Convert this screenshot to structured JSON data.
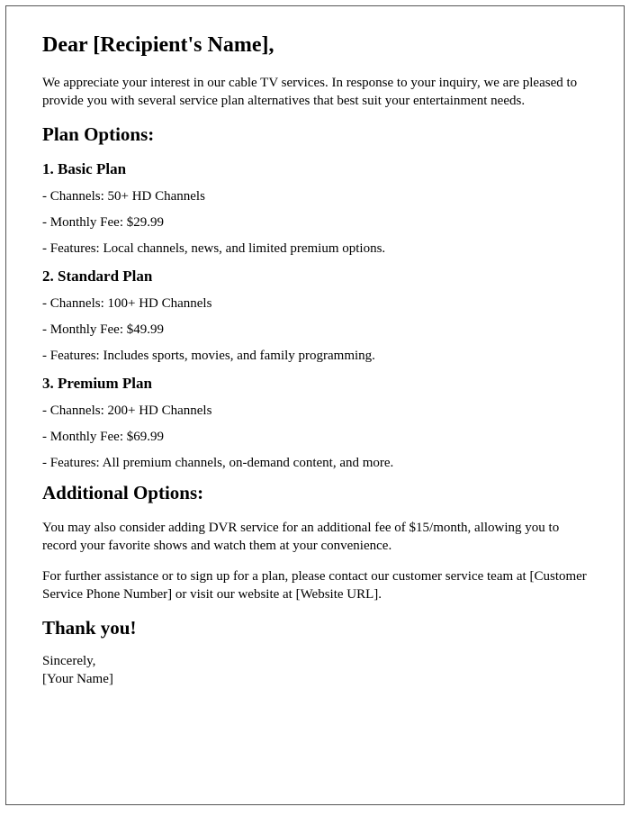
{
  "greeting": "Dear [Recipient's Name],",
  "intro": "We appreciate your interest in our cable TV services. In response to your inquiry, we are pleased to provide you with several service plan alternatives that best suit your entertainment needs.",
  "plan_options_heading": "Plan Options:",
  "plans": [
    {
      "name": "1. Basic Plan",
      "channels": "- Channels: 50+ HD Channels",
      "fee": "- Monthly Fee: $29.99",
      "features": "- Features: Local channels, news, and limited premium options."
    },
    {
      "name": "2. Standard Plan",
      "channels": "- Channels: 100+ HD Channels",
      "fee": "- Monthly Fee: $49.99",
      "features": "- Features: Includes sports, movies, and family programming."
    },
    {
      "name": "3. Premium Plan",
      "channels": "- Channels: 200+ HD Channels",
      "fee": "- Monthly Fee: $69.99",
      "features": "- Features: All premium channels, on-demand content, and more."
    }
  ],
  "additional_heading": "Additional Options:",
  "additional_text": "You may also consider adding DVR service for an additional fee of $15/month, allowing you to record your favorite shows and watch them at your convenience.",
  "assistance_text": "For further assistance or to sign up for a plan, please contact our customer service team at [Customer Service Phone Number] or visit our website at [Website URL].",
  "thankyou": "Thank you!",
  "signoff_line1": "Sincerely,",
  "signoff_line2": "[Your Name]"
}
